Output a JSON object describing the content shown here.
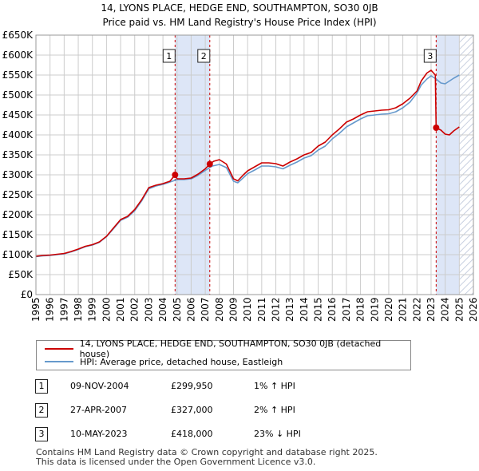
{
  "title_line1": "14, LYONS PLACE, HEDGE END, SOUTHAMPTON, SO30 0JB",
  "title_line2": "Price paid vs. HM Land Registry's House Price Index (HPI)",
  "colors": {
    "price_line": "#cc0000",
    "hpi_line": "#6699cc",
    "shade": "#dde6f7",
    "grid": "#cccccc",
    "vline": "#cc0000"
  },
  "chart_data": {
    "type": "line",
    "title": "Price paid vs. HM Land Registry's House Price Index (HPI)",
    "xlabel": "",
    "ylabel": "",
    "xlim": [
      1995,
      2026
    ],
    "ylim": [
      0,
      650000
    ],
    "y_ticks": [
      0,
      50000,
      100000,
      150000,
      200000,
      250000,
      300000,
      350000,
      400000,
      450000,
      500000,
      550000,
      600000,
      650000
    ],
    "y_tick_labels": [
      "£0",
      "£50K",
      "£100K",
      "£150K",
      "£200K",
      "£250K",
      "£300K",
      "£350K",
      "£400K",
      "£450K",
      "£500K",
      "£550K",
      "£600K",
      "£650K"
    ],
    "x_ticks": [
      1995,
      1996,
      1997,
      1998,
      1999,
      2000,
      2001,
      2002,
      2003,
      2004,
      2005,
      2006,
      2007,
      2008,
      2009,
      2010,
      2011,
      2012,
      2013,
      2014,
      2015,
      2016,
      2017,
      2018,
      2019,
      2020,
      2021,
      2022,
      2023,
      2024,
      2025,
      2026
    ],
    "x_tick_labels": [
      "1995",
      "1996",
      "1997",
      "1998",
      "1999",
      "2000",
      "2001",
      "2002",
      "2003",
      "2004",
      "2005",
      "2006",
      "2007",
      "2008",
      "2009",
      "2010",
      "2011",
      "2012",
      "2013",
      "2014",
      "2015",
      "2016",
      "2017",
      "2018",
      "2019",
      "2020",
      "2021",
      "2022",
      "2023",
      "2024",
      "2025",
      "2026"
    ],
    "grid": true,
    "shaded_spans": [
      [
        2004.86,
        2007.32
      ],
      [
        2023.36,
        2025.0
      ]
    ],
    "hatched_span": [
      2025.0,
      2026.0
    ],
    "series": [
      {
        "name": "14, LYONS PLACE, HEDGE END, SOUTHAMPTON, SO30 0JB (detached house)",
        "color": "#cc0000",
        "x": [
          1995.0,
          1995.5,
          1996.0,
          1996.5,
          1997.0,
          1997.5,
          1998.0,
          1998.5,
          1999.0,
          1999.5,
          2000.0,
          2000.5,
          2001.0,
          2001.5,
          2002.0,
          2002.5,
          2003.0,
          2003.5,
          2004.0,
          2004.5,
          2004.86,
          2005.0,
          2005.5,
          2006.0,
          2006.5,
          2007.0,
          2007.32,
          2007.6,
          2008.0,
          2008.5,
          2009.0,
          2009.3,
          2009.7,
          2010.0,
          2010.5,
          2011.0,
          2011.5,
          2012.0,
          2012.5,
          2013.0,
          2013.5,
          2014.0,
          2014.5,
          2015.0,
          2015.5,
          2016.0,
          2016.5,
          2017.0,
          2017.5,
          2018.0,
          2018.5,
          2019.0,
          2019.5,
          2020.0,
          2020.5,
          2021.0,
          2021.5,
          2022.0,
          2022.3,
          2022.7,
          2023.0,
          2023.3,
          2023.36,
          2023.7,
          2024.0,
          2024.3,
          2024.6,
          2025.0
        ],
        "values": [
          96000,
          98000,
          99000,
          101000,
          103000,
          108000,
          114000,
          121000,
          125000,
          132000,
          146000,
          167000,
          188000,
          196000,
          213000,
          238000,
          268000,
          274000,
          278000,
          284000,
          299950,
          290000,
          290000,
          292000,
          302000,
          315000,
          327000,
          334000,
          338000,
          327000,
          290000,
          285000,
          300000,
          310000,
          320000,
          330000,
          330000,
          328000,
          322000,
          332000,
          340000,
          350000,
          356000,
          372000,
          382000,
          400000,
          415000,
          432000,
          440000,
          450000,
          458000,
          460000,
          462000,
          463000,
          468000,
          478000,
          492000,
          510000,
          535000,
          555000,
          562000,
          550000,
          418000,
          412000,
          402000,
          400000,
          410000,
          420000
        ]
      },
      {
        "name": "HPI: Average price, detached house, Eastleigh",
        "color": "#6699cc",
        "x": [
          1995.0,
          1995.5,
          1996.0,
          1996.5,
          1997.0,
          1997.5,
          1998.0,
          1998.5,
          1999.0,
          1999.5,
          2000.0,
          2000.5,
          2001.0,
          2001.5,
          2002.0,
          2002.5,
          2003.0,
          2003.5,
          2004.0,
          2004.5,
          2005.0,
          2005.5,
          2006.0,
          2006.5,
          2007.0,
          2007.5,
          2008.0,
          2008.5,
          2009.0,
          2009.3,
          2009.7,
          2010.0,
          2010.5,
          2011.0,
          2011.5,
          2012.0,
          2012.5,
          2013.0,
          2013.5,
          2014.0,
          2014.5,
          2015.0,
          2015.5,
          2016.0,
          2016.5,
          2017.0,
          2017.5,
          2018.0,
          2018.5,
          2019.0,
          2019.5,
          2020.0,
          2020.5,
          2021.0,
          2021.5,
          2022.0,
          2022.3,
          2022.7,
          2023.0,
          2023.36,
          2023.7,
          2024.0,
          2024.3,
          2024.6,
          2025.0
        ],
        "values": [
          95000,
          97000,
          98000,
          100000,
          102000,
          107000,
          113000,
          120000,
          124000,
          131000,
          145000,
          165000,
          186000,
          194000,
          210000,
          235000,
          265000,
          272000,
          276000,
          282000,
          288000,
          288000,
          290000,
          299000,
          311000,
          322000,
          326000,
          318000,
          284000,
          280000,
          293000,
          303000,
          312000,
          322000,
          322000,
          320000,
          315000,
          324000,
          332000,
          342000,
          348000,
          362000,
          372000,
          390000,
          404000,
          420000,
          430000,
          440000,
          448000,
          450000,
          452000,
          453000,
          458000,
          468000,
          482000,
          505000,
          525000,
          540000,
          548000,
          540000,
          530000,
          528000,
          535000,
          542000,
          550000
        ]
      }
    ],
    "transaction_markers": [
      {
        "label": "1",
        "x": 2004.86,
        "value": 299950
      },
      {
        "label": "2",
        "x": 2007.32,
        "value": 327000
      },
      {
        "label": "3",
        "x": 2023.36,
        "value": 418000
      }
    ]
  },
  "legend": {
    "price_label": "14, LYONS PLACE, HEDGE END, SOUTHAMPTON, SO30 0JB (detached house)",
    "hpi_label": "HPI: Average price, detached house, Eastleigh"
  },
  "transactions": [
    {
      "num": "1",
      "date": "09-NOV-2004",
      "price": "£299,950",
      "hpi": "1% ↑ HPI"
    },
    {
      "num": "2",
      "date": "27-APR-2007",
      "price": "£327,000",
      "hpi": "2% ↑ HPI"
    },
    {
      "num": "3",
      "date": "10-MAY-2023",
      "price": "£418,000",
      "hpi": "23% ↓ HPI"
    }
  ],
  "footer": {
    "line1": "Contains HM Land Registry data © Crown copyright and database right 2025.",
    "line2": "This data is licensed under the Open Government Licence v3.0."
  }
}
